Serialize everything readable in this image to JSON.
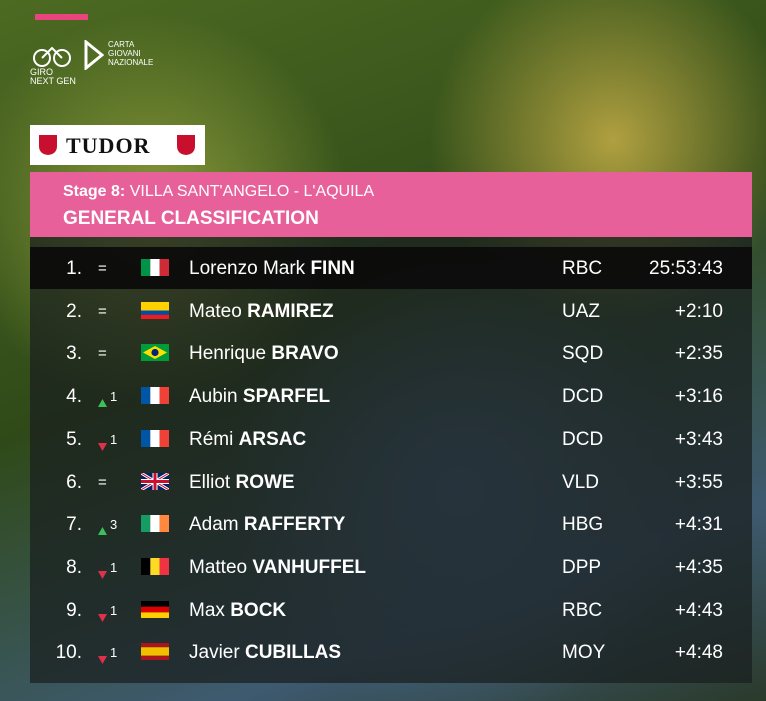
{
  "logos": {
    "giro": "GIRO NEXT GEN",
    "carta": "CARTA GIOVANI NAZIONALE",
    "sponsor": "TUDOR"
  },
  "header": {
    "stage": "Stage 8:",
    "route": "VILLA SANT'ANGELO - L'AQUILA",
    "title": "GENERAL CLASSIFICATION"
  },
  "table": {
    "rows": [
      {
        "rank": "1.",
        "move": "=",
        "first": "Lorenzo Mark",
        "last": "FINN",
        "team": "RBC",
        "time": "25:53:43"
      },
      {
        "rank": "2.",
        "move": "=",
        "first": "Mateo",
        "last": "RAMIREZ",
        "team": "UAZ",
        "time": "+2:10"
      },
      {
        "rank": "3.",
        "move": "=",
        "first": "Henrique",
        "last": "BRAVO",
        "team": "SQD",
        "time": "+2:35"
      },
      {
        "rank": "4.",
        "move": "1",
        "trend": "up",
        "first": "Aubin",
        "last": "SPARFEL",
        "team": "DCD",
        "time": "+3:16"
      },
      {
        "rank": "5.",
        "move": "1",
        "trend": "down",
        "first": "Rémi",
        "last": "ARSAC",
        "team": "DCD",
        "time": "+3:43"
      },
      {
        "rank": "6.",
        "move": "=",
        "first": "Elliot",
        "last": "ROWE",
        "team": "VLD",
        "time": "+3:55"
      },
      {
        "rank": "7.",
        "move": "3",
        "trend": "up",
        "first": "Adam",
        "last": "RAFFERTY",
        "team": "HBG",
        "time": "+4:31"
      },
      {
        "rank": "8.",
        "move": "1",
        "trend": "down",
        "first": "Matteo",
        "last": "VANHUFFEL",
        "team": "DPP",
        "time": "+4:35"
      },
      {
        "rank": "9.",
        "move": "1",
        "trend": "down",
        "first": "Max",
        "last": "BOCK",
        "team": "RBC",
        "time": "+4:43"
      },
      {
        "rank": "10.",
        "move": "1",
        "trend": "down",
        "first": "Javier",
        "last": "CUBILLAS",
        "team": "MOY",
        "time": "+4:48"
      }
    ]
  }
}
